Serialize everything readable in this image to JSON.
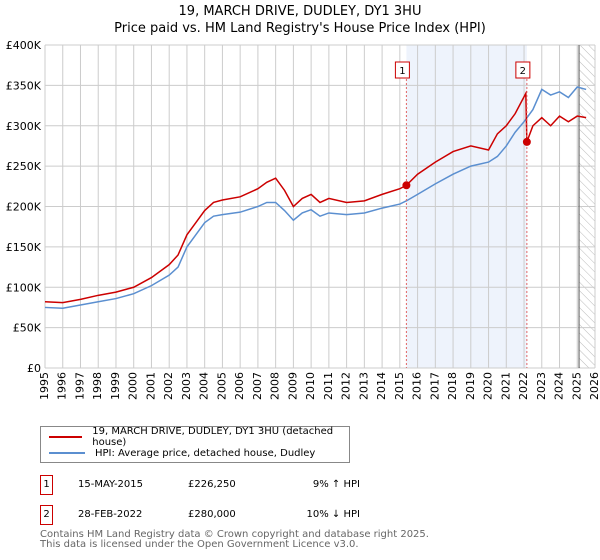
{
  "title": "19, MARCH DRIVE, DUDLEY, DY1 3HU",
  "subtitle": "Price paid vs. HM Land Registry's House Price Index (HPI)",
  "chart_data": {
    "type": "line",
    "xlim": [
      1995,
      2026
    ],
    "ylim": [
      0,
      400000
    ],
    "y_ticks": [
      0,
      50000,
      100000,
      150000,
      200000,
      250000,
      300000,
      350000,
      400000
    ],
    "y_tick_labels": [
      "£0",
      "£50K",
      "£100K",
      "£150K",
      "£200K",
      "£250K",
      "£300K",
      "£350K",
      "£400K"
    ],
    "x_ticks": [
      1995,
      1996,
      1997,
      1998,
      1999,
      2000,
      2001,
      2002,
      2003,
      2004,
      2005,
      2006,
      2007,
      2008,
      2009,
      2010,
      2011,
      2012,
      2013,
      2014,
      2015,
      2016,
      2017,
      2018,
      2019,
      2020,
      2021,
      2022,
      2023,
      2024,
      2025,
      2026
    ],
    "grid": true,
    "series": [
      {
        "name": "19, MARCH DRIVE, DUDLEY, DY1 3HU (detached house)",
        "color": "#cc0000",
        "x": [
          1995,
          1996,
          1997,
          1998,
          1999,
          2000,
          2001,
          2002,
          2002.5,
          2003,
          2003.5,
          2004,
          2004.5,
          2005,
          2006,
          2007,
          2007.5,
          2008,
          2008.5,
          2009,
          2009.5,
          2010,
          2010.5,
          2011,
          2012,
          2013,
          2014,
          2015,
          2015.37,
          2016,
          2017,
          2018,
          2019,
          2020,
          2020.5,
          2021,
          2021.5,
          2022.1,
          2022.16,
          2022.5,
          2023,
          2023.5,
          2024,
          2024.5,
          2025,
          2025.5
        ],
        "y": [
          82000,
          81000,
          85000,
          90000,
          94000,
          100000,
          112000,
          128000,
          140000,
          165000,
          180000,
          195000,
          205000,
          208000,
          212000,
          222000,
          230000,
          235000,
          220000,
          200000,
          210000,
          215000,
          205000,
          210000,
          205000,
          207000,
          215000,
          222000,
          226250,
          240000,
          255000,
          268000,
          275000,
          270000,
          290000,
          300000,
          315000,
          340000,
          280000,
          300000,
          310000,
          300000,
          312000,
          305000,
          312000,
          310000
        ]
      },
      {
        "name": "HPI: Average price, detached house, Dudley",
        "color": "#5b8fd0",
        "x": [
          1995,
          1996,
          1997,
          1998,
          1999,
          2000,
          2001,
          2002,
          2002.5,
          2003,
          2003.5,
          2004,
          2004.5,
          2005,
          2006,
          2007,
          2007.5,
          2008,
          2008.5,
          2009,
          2009.5,
          2010,
          2010.5,
          2011,
          2012,
          2013,
          2014,
          2015,
          2015.37,
          2016,
          2017,
          2018,
          2019,
          2020,
          2020.5,
          2021,
          2021.5,
          2022,
          2022.5,
          2023,
          2023.5,
          2024,
          2024.5,
          2025,
          2025.5
        ],
        "y": [
          75000,
          74000,
          78000,
          82000,
          86000,
          92000,
          102000,
          115000,
          125000,
          150000,
          165000,
          180000,
          188000,
          190000,
          193000,
          200000,
          205000,
          205000,
          195000,
          183000,
          192000,
          196000,
          188000,
          192000,
          190000,
          192000,
          198000,
          203000,
          207000,
          215000,
          228000,
          240000,
          250000,
          255000,
          262000,
          275000,
          292000,
          305000,
          320000,
          345000,
          338000,
          342000,
          335000,
          348000,
          345000
        ]
      }
    ],
    "annotations": [
      {
        "label": "1",
        "x": 2015.37,
        "y": 226250
      },
      {
        "label": "2",
        "x": 2022.16,
        "y": 280000
      }
    ],
    "shaded_range": [
      2015.37,
      2022.16
    ],
    "hatched_from": 2025.1
  },
  "legend": {
    "red": "19, MARCH DRIVE, DUDLEY, DY1 3HU (detached house)",
    "blue": "HPI: Average price, detached house, Dudley"
  },
  "transactions": [
    {
      "num": "1",
      "date": "15-MAY-2015",
      "price": "£226,250",
      "hpi": "9% ↑ HPI"
    },
    {
      "num": "2",
      "date": "28-FEB-2022",
      "price": "£280,000",
      "hpi": "10% ↓ HPI"
    }
  ],
  "footer": {
    "line1": "Contains HM Land Registry data © Crown copyright and database right 2025.",
    "line2": "This data is licensed under the Open Government Licence v3.0."
  }
}
